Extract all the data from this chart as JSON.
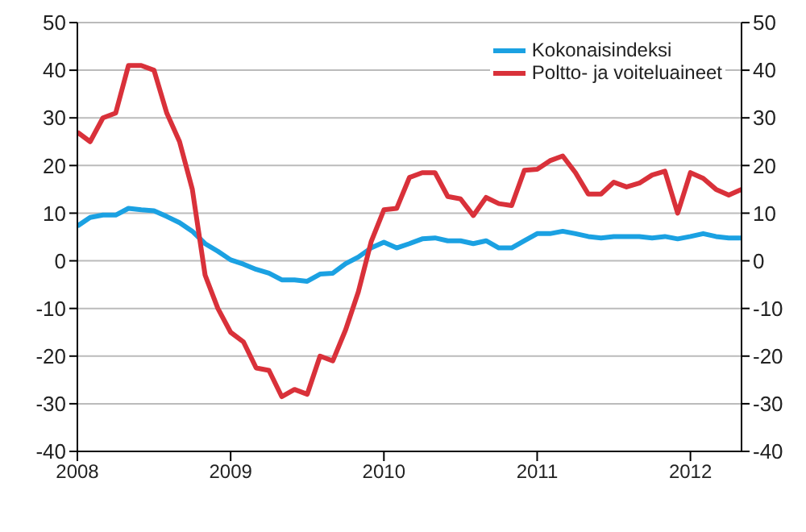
{
  "chart_data": {
    "type": "line",
    "x": [
      "2008-01",
      "2008-02",
      "2008-03",
      "2008-04",
      "2008-05",
      "2008-06",
      "2008-07",
      "2008-08",
      "2008-09",
      "2008-10",
      "2008-11",
      "2008-12",
      "2009-01",
      "2009-02",
      "2009-03",
      "2009-04",
      "2009-05",
      "2009-06",
      "2009-07",
      "2009-08",
      "2009-09",
      "2009-10",
      "2009-11",
      "2009-12",
      "2010-01",
      "2010-02",
      "2010-03",
      "2010-04",
      "2010-05",
      "2010-06",
      "2010-07",
      "2010-08",
      "2010-09",
      "2010-10",
      "2010-11",
      "2010-12",
      "2011-01",
      "2011-02",
      "2011-03",
      "2011-04",
      "2011-05",
      "2011-06",
      "2011-07",
      "2011-08",
      "2011-09",
      "2011-10",
      "2011-11",
      "2011-12",
      "2012-01",
      "2012-02",
      "2012-03",
      "2012-04",
      "2012-05"
    ],
    "series": [
      {
        "name": "Kokonaisindeksi",
        "color": "#1ba1e2",
        "values": [
          7.3,
          9.1,
          9.6,
          9.6,
          11,
          10.7,
          10.5,
          9.3,
          8,
          6.2,
          3.6,
          2,
          0.2,
          -0.7,
          -1.8,
          -2.6,
          -4,
          -4,
          -4.3,
          -2.8,
          -2.6,
          -0.6,
          0.8,
          2.7,
          3.9,
          2.7,
          3.6,
          4.6,
          4.8,
          4.2,
          4.2,
          3.6,
          4.2,
          2.7,
          2.7,
          4.2,
          5.7,
          5.7,
          6.2,
          5.7,
          5.1,
          4.8,
          5.1,
          5.1,
          5.1,
          4.8,
          5.1,
          4.6,
          5.1,
          5.7,
          5.1,
          4.8,
          4.8
        ]
      },
      {
        "name": "Poltto- ja voiteluaineet",
        "color": "#d9313a",
        "values": [
          27,
          25,
          30,
          31,
          41,
          41,
          40,
          31,
          25,
          15,
          -3,
          -10,
          -15,
          -17,
          -22.5,
          -23,
          -28.5,
          -27,
          -28,
          -20,
          -21,
          -14.5,
          -6.5,
          4,
          10.7,
          11,
          17.5,
          18.5,
          18.5,
          13.5,
          13,
          9.5,
          13.3,
          12,
          11.6,
          19,
          19.2,
          21,
          22,
          18.5,
          14,
          14,
          16.5,
          15.5,
          16.3,
          18,
          18.8,
          10,
          18.5,
          17.3,
          15,
          13.8,
          15
        ]
      }
    ],
    "xlim": [
      "2008-01",
      "2012-05"
    ],
    "xticks": [
      {
        "value": "2008-01",
        "label": "2008"
      },
      {
        "value": "2009-01",
        "label": "2009"
      },
      {
        "value": "2010-01",
        "label": "2010"
      },
      {
        "value": "2011-01",
        "label": "2011"
      },
      {
        "value": "2012-01",
        "label": "2012"
      }
    ],
    "ylim": [
      -40,
      50
    ],
    "yticks": [
      -40,
      -30,
      -20,
      -10,
      0,
      10,
      20,
      30,
      40,
      50
    ],
    "y2lim": [
      -40,
      50
    ],
    "y2ticks": [
      -40,
      -30,
      -20,
      -10,
      0,
      10,
      20,
      30,
      40,
      50
    ],
    "grid": "y",
    "legend": "top right",
    "marker": "none",
    "line_style": "solid"
  }
}
